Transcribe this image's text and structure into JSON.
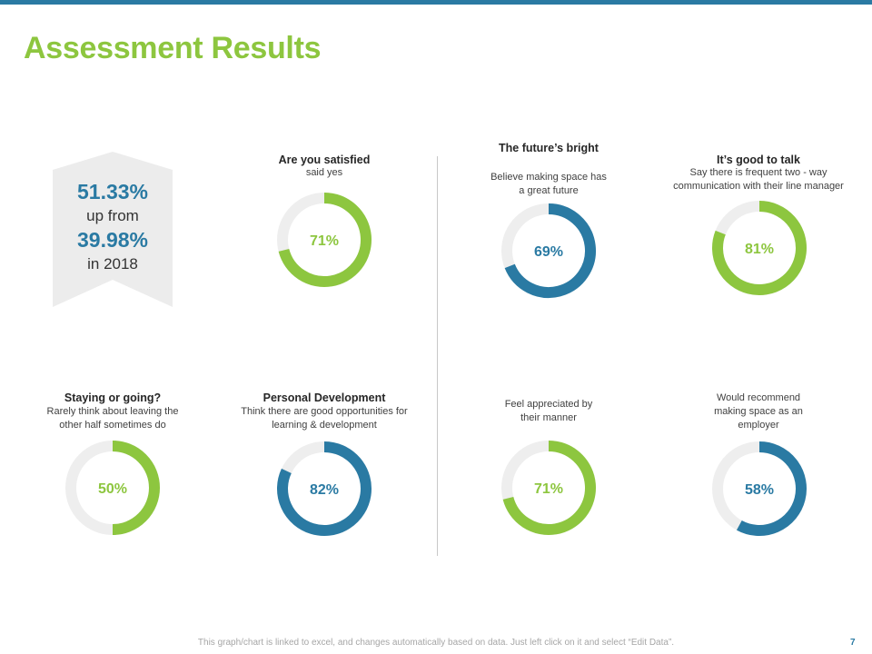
{
  "title": "Assessment Results",
  "colors": {
    "green": "#8dc63f",
    "blue": "#2a7aa3",
    "track": "#eeeeee"
  },
  "stat": {
    "value1": "51.33%",
    "text1": "up from",
    "value2": "39.98%",
    "text2": "in 2018"
  },
  "chart_data": [
    {
      "type": "pie",
      "title": "Are you satisfied",
      "subtitle": "said yes",
      "value": 71,
      "label": "71%",
      "color": "green"
    },
    {
      "type": "pie",
      "title": "The future’s bright",
      "subtitle": "Believe making space has a great future",
      "value": 69,
      "label": "69%",
      "color": "blue"
    },
    {
      "type": "pie",
      "title": "It’s good to talk",
      "subtitle": "Say there is frequent two - way communication with their line manager",
      "value": 81,
      "label": "81%",
      "color": "green"
    },
    {
      "type": "pie",
      "title": "Staying or going?",
      "subtitle": "Rarely think about leaving the other half sometimes do",
      "value": 50,
      "label": "50%",
      "color": "green"
    },
    {
      "type": "pie",
      "title": "Personal Development",
      "subtitle": "Think there are good opportunities for learning & development",
      "value": 82,
      "label": "82%",
      "color": "blue"
    },
    {
      "type": "pie",
      "title": "",
      "subtitle": "Feel appreciated by their manner",
      "value": 71,
      "label": "71%",
      "color": "green"
    },
    {
      "type": "pie",
      "title": "",
      "subtitle": "Would recommend making space as an employer",
      "value": 58,
      "label": "58%",
      "color": "blue"
    }
  ],
  "footer": {
    "note": "This graph/chart is linked to excel, and changes automatically based on data. Just left click on it and select “Edit Data”.",
    "page": "7"
  }
}
